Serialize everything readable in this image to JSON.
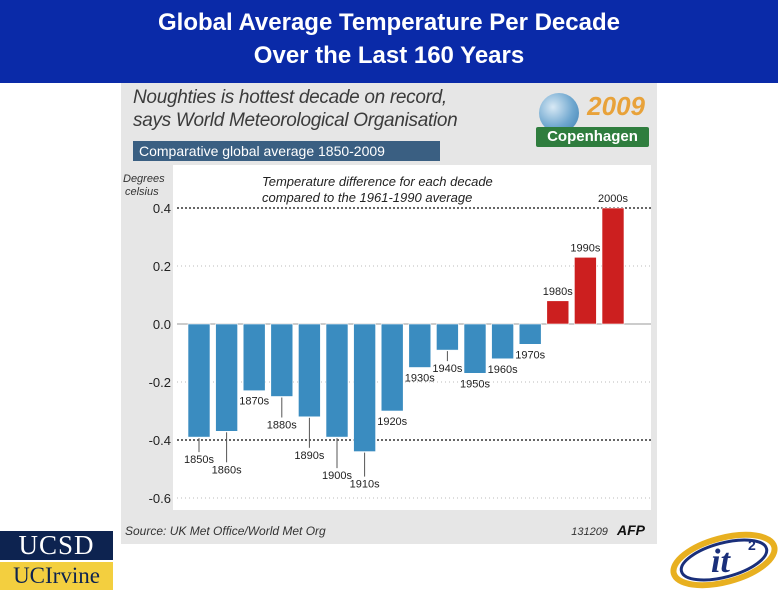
{
  "header": {
    "line1": "Global Average Temperature Per Decade",
    "line2": "Over the Last 160 Years"
  },
  "panel": {
    "headline_line1": "Noughties is hottest decade on record,",
    "headline_line2": "says World Meteorological Organisation",
    "banner": "Comparative global average 1850-2009",
    "badge_year": "2009",
    "badge_label": "Copenhagen",
    "source": "Source: UK Met Office/World Met Org",
    "code": "131209",
    "agency": "AFP"
  },
  "chart_data": {
    "type": "bar",
    "title": "Temperature difference for each decade compared to the 1961-1990 average",
    "subtitle_line1": "Temperature difference for each decade",
    "subtitle_line2": "compared to the 1961-1990 average",
    "ylabel_line1": "Degrees",
    "ylabel_line2": "celsius",
    "ylim": [
      -0.6,
      0.4
    ],
    "yticks": [
      0.4,
      0.2,
      0.0,
      -0.2,
      -0.4,
      -0.6
    ],
    "ytick_labels": [
      "0.4",
      "0.2",
      "0.0",
      "-0.2",
      "-0.4",
      "-0.6"
    ],
    "dotted_lines": [
      0.4,
      -0.4
    ],
    "categories": [
      "1850s",
      "1860s",
      "1870s",
      "1880s",
      "1890s",
      "1900s",
      "1910s",
      "1920s",
      "1930s",
      "1940s",
      "1950s",
      "1960s",
      "1970s",
      "1980s",
      "1990s",
      "2000s"
    ],
    "values": [
      -0.39,
      -0.37,
      -0.23,
      -0.25,
      -0.32,
      -0.39,
      -0.44,
      -0.3,
      -0.15,
      -0.09,
      -0.17,
      -0.12,
      -0.07,
      0.08,
      0.23,
      0.4
    ],
    "colors": {
      "negative": "#3a8cc0",
      "positive": "#cc1f1f"
    }
  },
  "logos": {
    "ucsd": "UCSD",
    "uci": "UCIrvine",
    "it2_text": "it",
    "it2_sup": "2"
  }
}
